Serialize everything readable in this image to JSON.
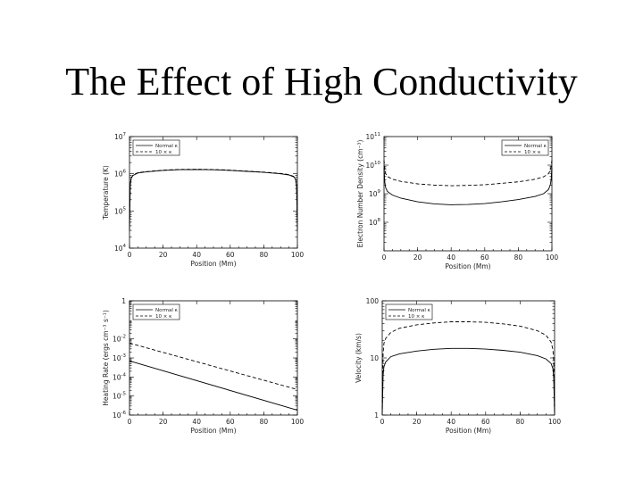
{
  "slide": {
    "title": "The Effect of High Conductivity"
  },
  "colors": {
    "line": "#000000",
    "text": "#222222",
    "background": "#ffffff"
  },
  "chart_data": [
    {
      "type": "line",
      "scale": "log-y",
      "xlabel": "Position (Mm)",
      "ylabel": "Temperature (K)",
      "xlim": [
        0,
        100
      ],
      "ylim": [
        10000,
        10000000
      ],
      "x_ticks": [
        "0",
        "20",
        "40",
        "60",
        "80",
        "100"
      ],
      "y_ticks": [
        {
          "base": "10",
          "exp": "4",
          "value": 10000
        },
        {
          "base": "10",
          "exp": "5",
          "value": 100000
        },
        {
          "base": "10",
          "exp": "6",
          "value": 1000000
        },
        {
          "base": "10",
          "exp": "7",
          "value": 10000000
        }
      ],
      "legend_position": "top-left",
      "series": [
        {
          "name": "Normal κ",
          "dash": "solid",
          "x": [
            0,
            0.5,
            1,
            2,
            5,
            10,
            20,
            30,
            40,
            50,
            60,
            70,
            80,
            90,
            95,
            98,
            99,
            99.5,
            100
          ],
          "y": [
            30000,
            500000,
            750000,
            900000,
            1050000,
            1120000,
            1230000,
            1290000,
            1300000,
            1280000,
            1230000,
            1160000,
            1090000,
            1000000,
            930000,
            820000,
            700000,
            450000,
            30000
          ]
        },
        {
          "name": "10 × κ",
          "dash": "dashed",
          "x": [
            0,
            0.5,
            1,
            2,
            5,
            10,
            20,
            30,
            40,
            50,
            60,
            70,
            80,
            90,
            95,
            98,
            99,
            99.5,
            100
          ],
          "y": [
            30000,
            520000,
            770000,
            920000,
            1070000,
            1140000,
            1250000,
            1310000,
            1320000,
            1300000,
            1250000,
            1180000,
            1110000,
            1020000,
            950000,
            840000,
            720000,
            470000,
            30000
          ]
        }
      ]
    },
    {
      "type": "line",
      "scale": "log-y",
      "xlabel": "Position (Mm)",
      "ylabel": "Electron Number Density (cm⁻³)",
      "xlim": [
        0,
        100
      ],
      "ylim": [
        10000000,
        100000000000
      ],
      "x_ticks": [
        "0",
        "20",
        "40",
        "60",
        "80",
        "100"
      ],
      "y_ticks": [
        {
          "base": "10",
          "exp": "8",
          "value": 100000000
        },
        {
          "base": "10",
          "exp": "9",
          "value": 1000000000
        },
        {
          "base": "10",
          "exp": "10",
          "value": 10000000000
        },
        {
          "base": "10",
          "exp": "11",
          "value": 100000000000
        }
      ],
      "legend_position": "top-right",
      "series": [
        {
          "name": "Normal κ",
          "dash": "solid",
          "x": [
            0,
            0.5,
            1,
            2,
            5,
            10,
            20,
            30,
            40,
            50,
            60,
            70,
            80,
            90,
            95,
            98,
            99,
            99.5,
            100
          ],
          "y": [
            8000000000,
            2500000000,
            1600000000,
            1200000000,
            900000000,
            700000000,
            520000000,
            440000000,
            410000000,
            420000000,
            450000000,
            520000000,
            620000000,
            800000000,
            1000000000,
            1400000000,
            2000000000,
            3000000000,
            8000000000
          ]
        },
        {
          "name": "10 × κ",
          "dash": "dashed",
          "x": [
            0,
            0.5,
            1,
            2,
            5,
            10,
            20,
            30,
            40,
            50,
            60,
            70,
            80,
            90,
            95,
            98,
            99,
            99.5,
            100
          ],
          "y": [
            15000000000,
            7000000000,
            5000000000,
            4000000000,
            3200000000,
            2700000000,
            2200000000,
            2000000000,
            1900000000,
            1950000000,
            2050000000,
            2300000000,
            2600000000,
            3200000000,
            3900000000,
            5000000000,
            6500000000,
            9000000000,
            15000000000
          ]
        }
      ]
    },
    {
      "type": "line",
      "scale": "log-y",
      "xlabel": "Position (Mm)",
      "ylabel": "Heating Rate (ergs cm⁻³ s⁻¹)",
      "xlim": [
        0,
        100
      ],
      "ylim": [
        1e-06,
        1
      ],
      "x_ticks": [
        "0",
        "20",
        "40",
        "60",
        "80",
        "100"
      ],
      "y_ticks": [
        {
          "base": "10",
          "exp": "-6",
          "value": 1e-06
        },
        {
          "base": "10",
          "exp": "-5",
          "value": 1e-05
        },
        {
          "base": "10",
          "exp": "-4",
          "value": 0.0001
        },
        {
          "base": "10",
          "exp": "-3",
          "value": 0.001
        },
        {
          "base": "10",
          "exp": "-2",
          "value": 0.01
        },
        {
          "base": "1",
          "exp": "",
          "value": 1
        }
      ],
      "legend_position": "top-left",
      "series": [
        {
          "name": "Normal κ",
          "dash": "solid",
          "x": [
            0,
            100
          ],
          "y": [
            0.0007,
            1.8e-06
          ]
        },
        {
          "name": "10 × κ",
          "dash": "dashed",
          "x": [
            0,
            100
          ],
          "y": [
            0.006,
            2.2e-05
          ]
        }
      ]
    },
    {
      "type": "line",
      "scale": "log-y",
      "xlabel": "Position (Mm)",
      "ylabel": "Velocity (km/s)",
      "xlim": [
        0,
        100
      ],
      "ylim": [
        1,
        100
      ],
      "x_ticks": [
        "0",
        "20",
        "40",
        "60",
        "80",
        "100"
      ],
      "y_ticks": [
        {
          "base": "1",
          "exp": "",
          "value": 1
        },
        {
          "base": "10",
          "exp": "",
          "value": 10
        },
        {
          "base": "100",
          "exp": "",
          "value": 100
        }
      ],
      "legend_position": "top-left",
      "series": [
        {
          "name": "Normal κ",
          "dash": "solid",
          "x": [
            0,
            0.5,
            1,
            2,
            5,
            10,
            20,
            30,
            40,
            50,
            60,
            70,
            80,
            90,
            95,
            98,
            99,
            99.5,
            100
          ],
          "y": [
            1,
            5,
            7,
            8.5,
            10.5,
            11.8,
            13.2,
            14.2,
            14.7,
            14.7,
            14.3,
            13.6,
            12.6,
            11,
            9.6,
            8,
            6.5,
            4.5,
            1
          ]
        },
        {
          "name": "10 × κ",
          "dash": "dashed",
          "x": [
            0,
            0.5,
            1,
            2,
            5,
            10,
            20,
            30,
            40,
            50,
            60,
            70,
            80,
            90,
            95,
            98,
            99,
            99.5,
            100
          ],
          "y": [
            1,
            12,
            18,
            22,
            28,
            33,
            38,
            41,
            43,
            43,
            42,
            39.5,
            36,
            30,
            25,
            19,
            14,
            9,
            1
          ]
        }
      ]
    }
  ]
}
